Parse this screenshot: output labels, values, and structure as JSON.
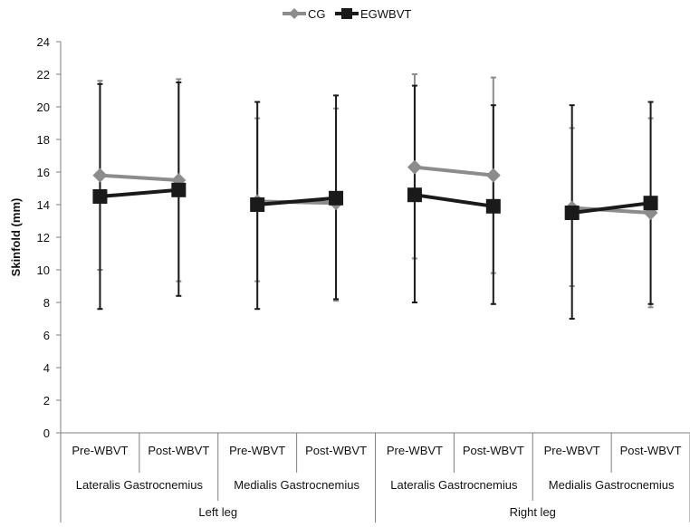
{
  "chart_data": {
    "type": "line",
    "title": "",
    "ylabel": "Skinfold (mm)",
    "xlabel": "",
    "ylim": [
      0,
      24
    ],
    "yticks": [
      0,
      2,
      4,
      6,
      8,
      10,
      12,
      14,
      16,
      18,
      20,
      22,
      24
    ],
    "grid": false,
    "legend_position": "top",
    "categories_level1": [
      "Pre-WBVT",
      "Post-WBVT",
      "Pre-WBVT",
      "Post-WBVT",
      "Pre-WBVT",
      "Post-WBVT",
      "Pre-WBVT",
      "Post-WBVT"
    ],
    "categories_level2": [
      "Lateralis Gastrocnemius",
      "Medialis Gastrocnemius",
      "Lateralis Gastrocnemius",
      "Medialis Gastrocnemius"
    ],
    "categories_level3": [
      "Left leg",
      "Right leg"
    ],
    "series": [
      {
        "name": "CG",
        "color": "#8c8c8c",
        "marker": "diamond",
        "values": [
          15.8,
          15.5,
          14.2,
          14.1,
          16.3,
          15.8,
          13.8,
          13.5
        ],
        "err_low": [
          10.0,
          9.3,
          9.3,
          8.1,
          10.7,
          9.8,
          9.0,
          7.7
        ],
        "err_high": [
          21.6,
          21.7,
          19.3,
          19.9,
          22.0,
          21.8,
          18.7,
          19.3
        ]
      },
      {
        "name": "EGWBVT",
        "color": "#1a1a1a",
        "marker": "square",
        "values": [
          14.5,
          14.9,
          14.0,
          14.4,
          14.6,
          13.9,
          13.5,
          14.1
        ],
        "err_low": [
          7.6,
          8.4,
          7.6,
          8.2,
          8.0,
          7.9,
          7.0,
          7.9
        ],
        "err_high": [
          21.4,
          21.5,
          20.3,
          20.7,
          21.3,
          20.1,
          20.1,
          20.3
        ]
      }
    ],
    "segments": [
      {
        "series": 0,
        "from": 0,
        "to": 1
      },
      {
        "series": 0,
        "from": 2,
        "to": 3
      },
      {
        "series": 0,
        "from": 4,
        "to": 5
      },
      {
        "series": 0,
        "from": 6,
        "to": 7
      },
      {
        "series": 1,
        "from": 0,
        "to": 1
      },
      {
        "series": 1,
        "from": 2,
        "to": 3
      },
      {
        "series": 1,
        "from": 4,
        "to": 5
      },
      {
        "series": 1,
        "from": 6,
        "to": 7
      }
    ]
  }
}
